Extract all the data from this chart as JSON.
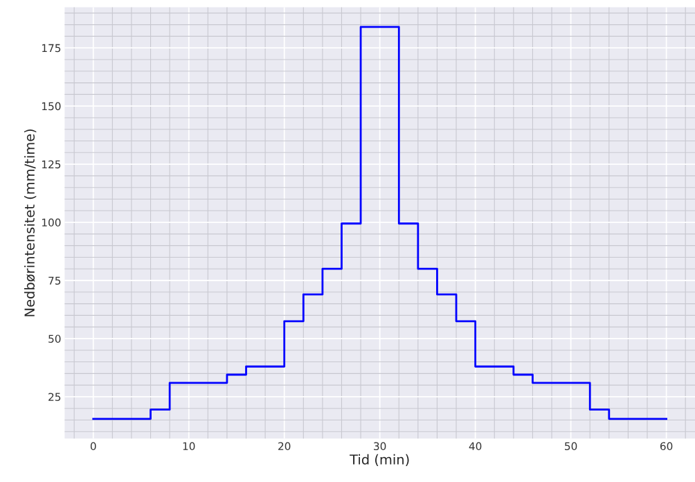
{
  "chart_data": {
    "type": "step",
    "xlabel": "Tid (min)",
    "ylabel": "Nedbørintensitet (mm/time)",
    "x": [
      0,
      6,
      8,
      14,
      16,
      20,
      22,
      24,
      26,
      28,
      32,
      34,
      36,
      38,
      40,
      44,
      46,
      52,
      54,
      60
    ],
    "series": [
      {
        "color": "#0000ff",
        "values": [
          15.5,
          19.5,
          31,
          34.5,
          38,
          57.5,
          69,
          80,
          99.5,
          184,
          99.5,
          80,
          69,
          57.5,
          38,
          34.5,
          31,
          19.5,
          15.5,
          15.5
        ]
      }
    ],
    "xlim": [
      -3,
      63
    ],
    "xticks": [
      0,
      10,
      20,
      30,
      40,
      50,
      60
    ],
    "ylim": [
      7,
      192.5
    ],
    "yticks": [
      25,
      50,
      75,
      100,
      125,
      150,
      175
    ],
    "grid": true,
    "line_style": "solid"
  }
}
